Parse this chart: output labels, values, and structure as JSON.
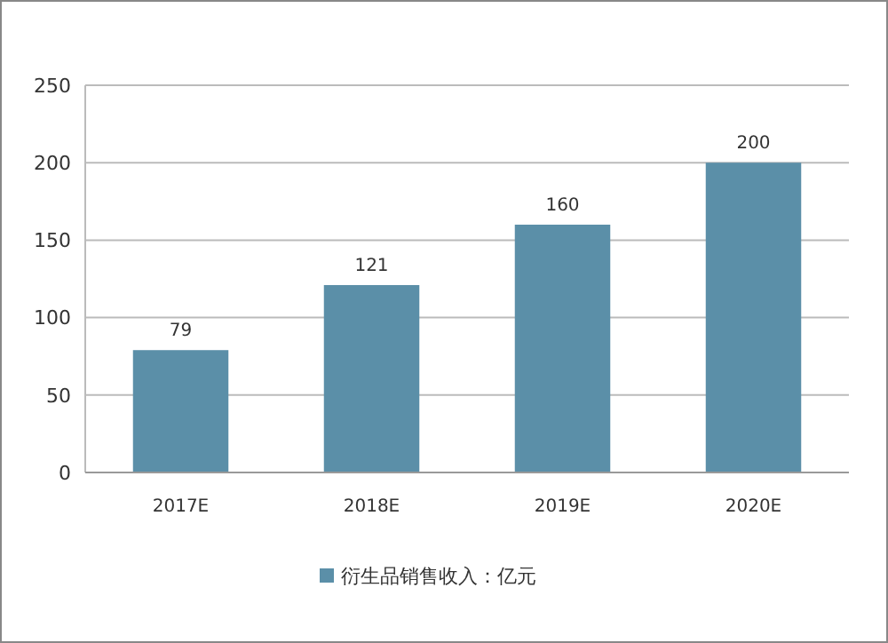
{
  "chart_data": {
    "type": "bar",
    "categories": [
      "2017E",
      "2018E",
      "2019E",
      "2020E"
    ],
    "series": [
      {
        "name": "衍生品销售收入：亿元",
        "color": "#5b8fa8",
        "values": [
          79,
          121,
          160,
          200
        ]
      }
    ],
    "ylim": [
      0,
      250
    ],
    "yticks": [
      0,
      50,
      100,
      150,
      200,
      250
    ],
    "grid": "y",
    "legend": "bottom",
    "data_labels": true
  }
}
